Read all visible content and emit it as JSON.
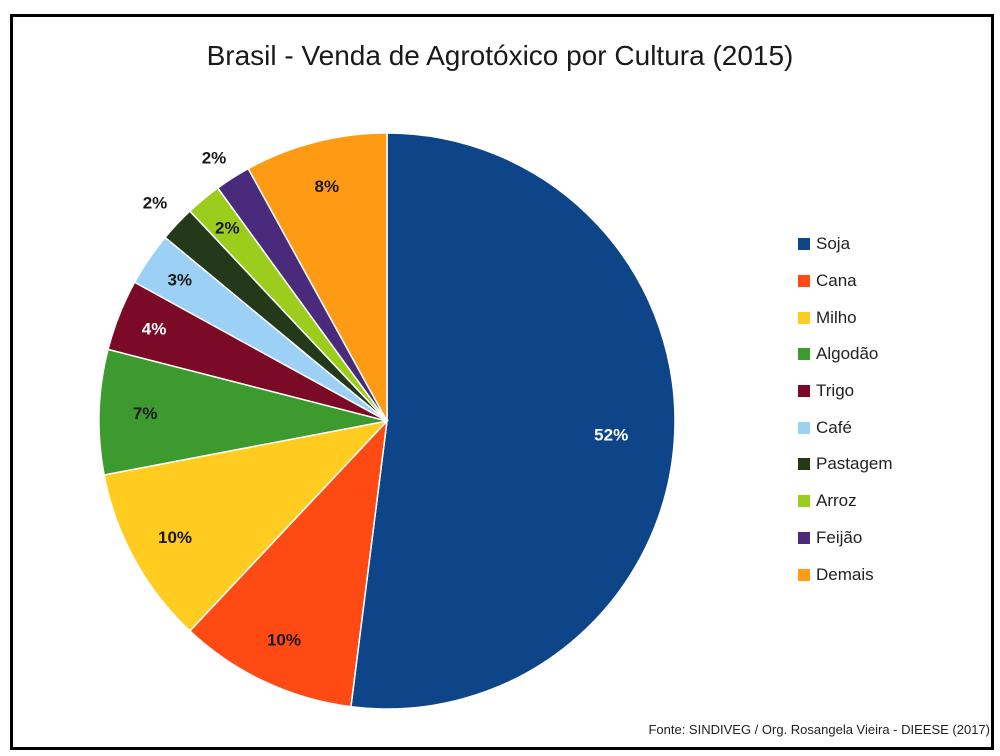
{
  "chart_data": {
    "type": "pie",
    "title": "Brasil - Venda de Agrotóxico por Cultura (2015)",
    "categories": [
      "Soja",
      "Cana",
      "Milho",
      "Algodão",
      "Trigo",
      "Café",
      "Pastagem",
      "Arroz",
      "Feijão",
      "Demais"
    ],
    "values": [
      52,
      10,
      10,
      7,
      4,
      3,
      2,
      2,
      2,
      8
    ],
    "labels": [
      "52%",
      "10%",
      "10%",
      "7%",
      "4%",
      "3%",
      "2%",
      "2%",
      "2%",
      "8%"
    ],
    "colors": [
      "#0d4588",
      "#ff4a14",
      "#ffcc1f",
      "#3d9a2e",
      "#7a0a26",
      "#9dd0f5",
      "#23391a",
      "#9ccc1c",
      "#4a2a7a",
      "#ff9a14"
    ],
    "label_colors": [
      "#ffffff",
      "#1a1a1a",
      "#1a1a1a",
      "#1a1a1a",
      "#ffffff",
      "#1a1a1a",
      "#1a1a1a",
      "#1a1a1a",
      "#1a1a1a",
      "#1a1a1a"
    ],
    "legend_position": "right"
  },
  "source": "Fonte: SINDIVEG / Org. Rosangela Vieira - DIEESE (2017)"
}
